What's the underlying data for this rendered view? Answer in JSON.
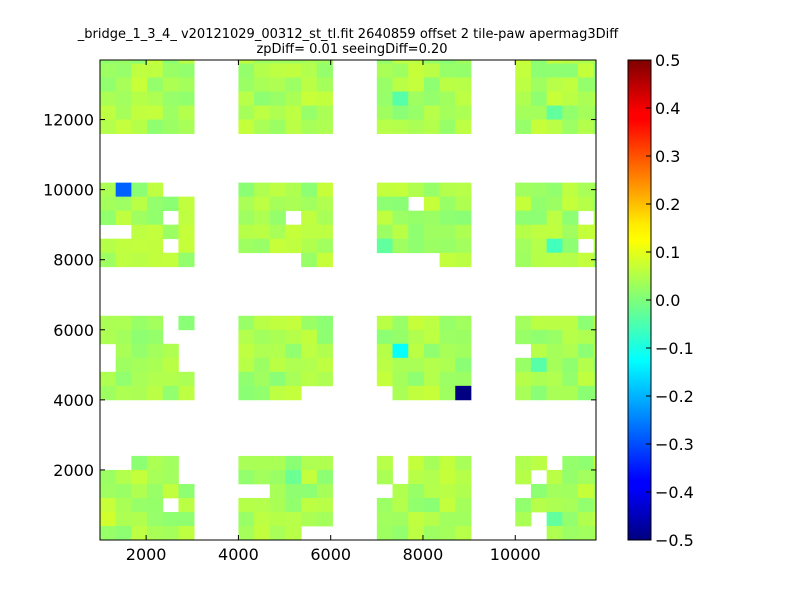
{
  "chart_data": {
    "type": "heatmap",
    "title_line1": "_bridge_1_3_4_ v20121029_00312_st_tl.fit 2640859 offset 2 tile-paw apermag3Diff",
    "title_line2": "zpDiff= 0.01 seeingDiff=0.20",
    "xlim": [
      1000,
      11750
    ],
    "ylim": [
      0,
      13700
    ],
    "x_ticks": [
      2000,
      4000,
      6000,
      8000,
      10000
    ],
    "x_tick_labels": [
      "2000",
      "4000",
      "6000",
      "8000",
      "10000"
    ],
    "y_ticks": [
      2000,
      4000,
      6000,
      8000,
      10000,
      12000
    ],
    "y_tick_labels": [
      "2000",
      "4000",
      "6000",
      "8000",
      "10000",
      "12000"
    ],
    "colorbar": {
      "colormap": "jet",
      "range": [
        -0.5,
        0.5
      ],
      "ticks": [
        0.5,
        0.4,
        0.3,
        0.2,
        0.1,
        0.0,
        -0.1,
        -0.2,
        -0.3,
        -0.4,
        -0.5
      ],
      "tick_labels": [
        "0.5",
        "0.4",
        "0.3",
        "0.2",
        "0.1",
        "0.0",
        "−0.1",
        "−0.2",
        "−0.3",
        "−0.4",
        "−0.5"
      ]
    },
    "grid": false,
    "cell_size_x": 340,
    "cell_size_y": 400,
    "default_value": 0.03,
    "detectors": [
      {
        "x0": 1000,
        "y0": 0,
        "mask": [
          "..XXX.",
          "XXXXX.",
          "XXXXXX",
          "XXXX.X",
          "XXXXXX",
          "XXXXXX"
        ]
      },
      {
        "x0": 4000,
        "y0": 0,
        "mask": [
          "XXXXXX",
          "XXXXXX",
          "..XXXX",
          "XXXXXX",
          "XXXXXX",
          "XXXX.."
        ]
      },
      {
        "x0": 7000,
        "y0": 0,
        "mask": [
          "X.XXXX",
          "X.XXXX",
          ".XXXXX",
          "XXXXXX",
          "XXXXXX",
          "XXXXXX"
        ]
      },
      {
        "x0": 10000,
        "y0": 0,
        "mask": [
          "XX.XXX",
          "X.XXXX",
          ".XXXXX",
          "XXXXXX",
          "X.XXXX",
          "..XXXX"
        ]
      },
      {
        "x0": 1000,
        "y0": 4000,
        "mask": [
          "XXXX.X",
          "XXXX..",
          ".XXXX.",
          ".XXXX.",
          "XXXXXX",
          "XXXXXX"
        ]
      },
      {
        "x0": 4000,
        "y0": 4000,
        "mask": [
          "XXXXXX",
          "XXXXXX",
          "XXXXXX",
          "XXXXXX",
          "XXXXXX",
          "XXXX.."
        ]
      },
      {
        "x0": 7000,
        "y0": 4000,
        "mask": [
          "XXXXXX",
          "XXXXXX",
          "XXXXXX",
          "XXXXXX",
          "XXXXXX",
          ".XXXXX"
        ]
      },
      {
        "x0": 10000,
        "y0": 4000,
        "mask": [
          "XXXXXX",
          "XXXXXX",
          ".XXXXX",
          "XXXXXX",
          "XXXXXX",
          "XXXXXX"
        ]
      },
      {
        "x0": 1000,
        "y0": 7800,
        "mask": [
          "XXXX..",
          "XXXXXX",
          "XXXX.X",
          "..XXXX",
          "XXXX.X",
          "XXXXXX"
        ]
      },
      {
        "x0": 4000,
        "y0": 7800,
        "mask": [
          "XXXXXX",
          "XXXXXX",
          "XXX.XX",
          "XXXXXX",
          "XXXXXX",
          "....XX"
        ]
      },
      {
        "x0": 7000,
        "y0": 7800,
        "mask": [
          "XXXXXX",
          "XX.XXX",
          "XXXXXX",
          "XXXXXX",
          "XXXXXX",
          "....XX"
        ]
      },
      {
        "x0": 10000,
        "y0": 7800,
        "mask": [
          "XXXXXX",
          "XXXXXX",
          "XXXX.X",
          "XXXXXX",
          "XXXX.X",
          "XXXXXX"
        ]
      },
      {
        "x0": 1000,
        "y0": 11600,
        "mask": [
          "XXXXXX",
          "XXXXXX",
          "XXXXXX",
          "XXXXXX",
          "XXXXXX",
          "XXXXXX"
        ]
      },
      {
        "x0": 4000,
        "y0": 11600,
        "mask": [
          "XXXXXX",
          "XXXXXX",
          "XXXXXX",
          "XXXXXX",
          "XXXXXX",
          "XXXXXX"
        ]
      },
      {
        "x0": 7000,
        "y0": 11600,
        "mask": [
          "XXXXXX",
          "XXXXXX",
          "XXXXXX",
          "XXXXXX",
          "XXXXXX",
          "XXXXXX"
        ]
      },
      {
        "x0": 10000,
        "y0": 11600,
        "mask": [
          "XXXXXX",
          "XXXXXX",
          "XXXXXX",
          "XXXXXX",
          "XXXXXX",
          "XXXXXX"
        ]
      }
    ],
    "special_cells": [
      {
        "x": 1520,
        "y": 9800,
        "value": -0.28
      },
      {
        "x": 9000,
        "y": 4150,
        "value": -0.5
      },
      {
        "x": 7580,
        "y": 5500,
        "value": -0.12
      },
      {
        "x": 10900,
        "y": 8400,
        "value": -0.06
      },
      {
        "x": 7580,
        "y": 12700,
        "value": -0.04
      },
      {
        "x": 10400,
        "y": 4950,
        "value": -0.04
      },
      {
        "x": 10700,
        "y": 12000,
        "value": -0.03
      },
      {
        "x": 7250,
        "y": 8400,
        "value": -0.03
      },
      {
        "x": 11000,
        "y": 12000,
        "value": -0.03
      },
      {
        "x": 10900,
        "y": 400,
        "value": -0.03
      },
      {
        "x": 5200,
        "y": 1950,
        "value": -0.02
      },
      {
        "x": 10350,
        "y": 550,
        "value": -0.02
      },
      {
        "x": 2000,
        "y": 13100,
        "value": 0.07
      },
      {
        "x": 3100,
        "y": 13100,
        "value": 0.08
      },
      {
        "x": 1300,
        "y": 550,
        "value": 0.08
      },
      {
        "x": 1300,
        "y": 950,
        "value": 0.07
      },
      {
        "x": 2400,
        "y": 950,
        "value": 0.07
      },
      {
        "x": 10700,
        "y": 12700,
        "value": 0.07
      },
      {
        "x": 10900,
        "y": 9300,
        "value": 0.06
      },
      {
        "x": 4500,
        "y": 550,
        "value": 0.06
      },
      {
        "x": 2700,
        "y": 4150,
        "value": 0.06
      },
      {
        "x": 8300,
        "y": 4500,
        "value": 0.05
      }
    ]
  }
}
